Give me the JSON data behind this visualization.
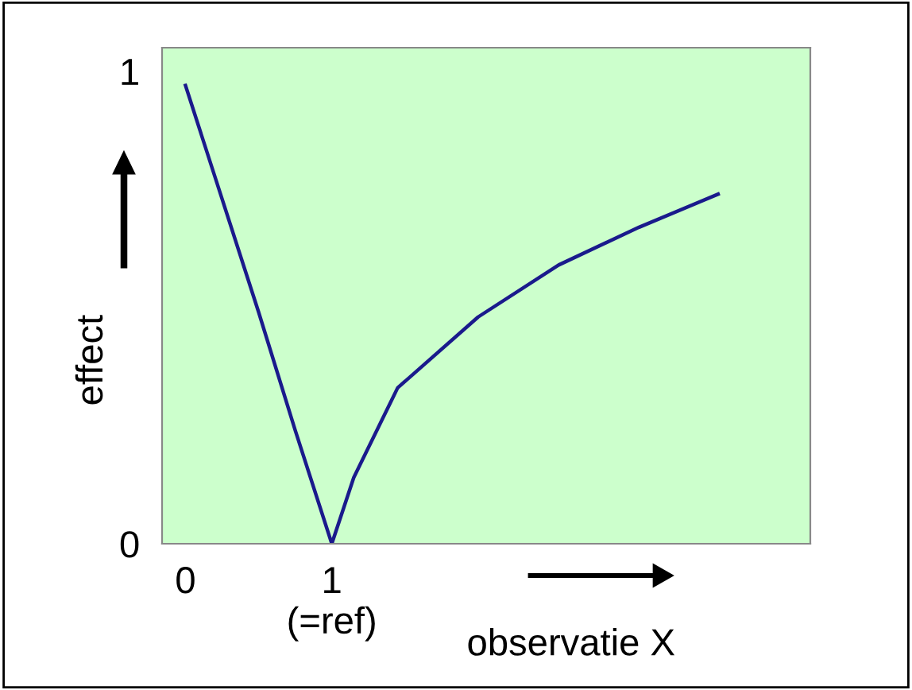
{
  "chart_data": {
    "type": "line",
    "xlabel": "observatie X",
    "ylabel": "effect",
    "x": [
      0,
      0.25,
      0.5,
      0.75,
      1,
      1.15,
      1.45,
      2.0,
      2.55,
      3.1,
      3.64
    ],
    "series": [
      {
        "color": "#1a1a8c",
        "values": [
          0.97,
          0.73,
          0.49,
          0.24,
          0,
          0.14,
          0.33,
          0.48,
          0.59,
          0.67,
          0.74
        ]
      }
    ],
    "xlim": [
      -0.16,
      4.27
    ],
    "ylim": [
      0,
      1.05
    ],
    "xticks": [
      0,
      {
        "value": 1,
        "label": "1\n(=ref)"
      }
    ],
    "yticks": [
      0,
      1
    ],
    "grid": false,
    "legend": false,
    "marker": "none",
    "line_style": "solid"
  }
}
